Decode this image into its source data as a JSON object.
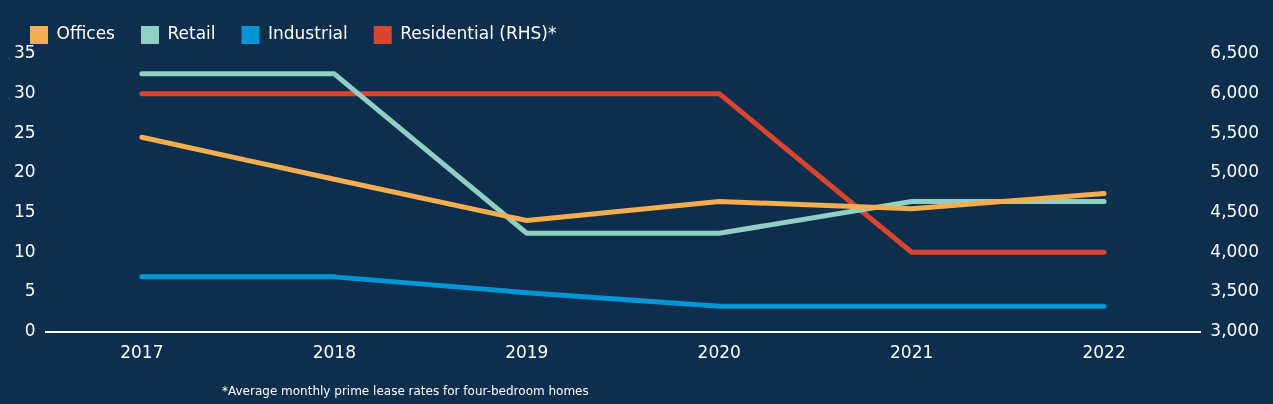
{
  "chart_data": {
    "type": "line",
    "categories": [
      "2017",
      "2018",
      "2019",
      "2020",
      "2021",
      "2022"
    ],
    "series": [
      {
        "name": "Offices",
        "color": "#f5ae4f",
        "values": [
          24.5,
          19.2,
          14,
          16.4,
          15.5,
          17.4
        ]
      },
      {
        "name": "Retail",
        "color": "#8fcfc4",
        "values": [
          32.5,
          32.5,
          12.4,
          12.4,
          16.4,
          16.4
        ]
      },
      {
        "name": "Industrial",
        "color": "#0096d6",
        "values": [
          6.9,
          6.9,
          4.9,
          3.2,
          3.2,
          3.2
        ]
      },
      {
        "name": "Residential (RHS)*",
        "color": "#d9452f",
        "values": [
          6000,
          6000,
          6000,
          6000,
          4000,
          4000
        ],
        "axis": "y2"
      }
    ],
    "ylim": [
      0,
      35
    ],
    "yticks": [
      0,
      5,
      10,
      15,
      20,
      25,
      30,
      35
    ],
    "y2lim": [
      3000,
      6500
    ],
    "y2ticks": [
      {
        "value": 3000,
        "label": "3,000"
      },
      {
        "value": 3500,
        "label": "3,500"
      },
      {
        "value": 4000,
        "label": "4,000"
      },
      {
        "value": 4500,
        "label": "4,500"
      },
      {
        "value": 5000,
        "label": "5,000"
      },
      {
        "value": 5500,
        "label": "5,500"
      },
      {
        "value": 6000,
        "label": "6,000"
      },
      {
        "value": 6500,
        "label": "6,500"
      }
    ],
    "grid": false,
    "legend": "top left",
    "marker": "none",
    "line_style": "solid",
    "annotations": [
      "*Average monthly prime lease rates for four-bedroom homes"
    ]
  }
}
